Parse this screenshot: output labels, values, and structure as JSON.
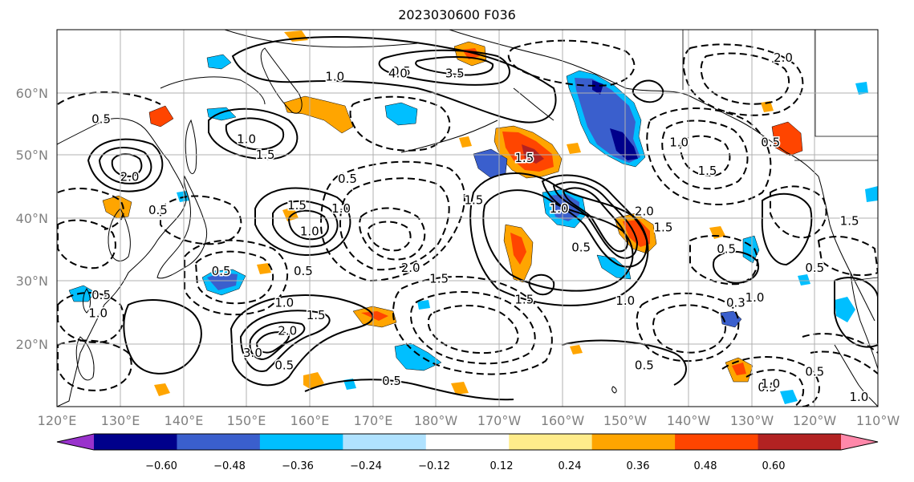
{
  "title": "2023030600 F036",
  "lat_labels": [
    "60°N",
    "50°N",
    "40°N",
    "30°N",
    "20°N"
  ],
  "lon_labels": [
    "120°E",
    "130°E",
    "140°E",
    "150°E",
    "160°E",
    "170°E",
    "180°W",
    "170°W",
    "160°W",
    "150°W",
    "140°W",
    "130°W",
    "120°W",
    "110°W"
  ],
  "colorbar": {
    "colors": [
      "#9932cc",
      "#00008b",
      "#3a5fcd",
      "#00bfff",
      "#b0e2ff",
      "#ffffff",
      "#ffec8b",
      "#ffa500",
      "#ff4500",
      "#b22222",
      "#ff88aa"
    ],
    "tick_labels": [
      "−0.60",
      "−0.48",
      "−0.36",
      "−0.24",
      "−0.12",
      "0.12",
      "0.24",
      "0.36",
      "0.48",
      "0.60"
    ]
  },
  "contour_labels": [
    {
      "text": "0.5",
      "lon": 174.5,
      "lat": 63.3
    },
    {
      "text": "1.0",
      "lon": 164,
      "lat": 62.5
    },
    {
      "text": "4.0",
      "lon": 174,
      "lat": 63.0
    },
    {
      "text": "3.5",
      "lon": 183,
      "lat": 63.0
    },
    {
      "text": "0.5",
      "lon": 127,
      "lat": 55.7
    },
    {
      "text": "1.0",
      "lon": 150,
      "lat": 52.5
    },
    {
      "text": "1.5",
      "lon": 153,
      "lat": 50.0
    },
    {
      "text": "2.0",
      "lon": 131.5,
      "lat": 46.5
    },
    {
      "text": "1.5",
      "lon": 158,
      "lat": 42.0
    },
    {
      "text": "1.0",
      "lon": 160,
      "lat": 37.8
    },
    {
      "text": "0.5",
      "lon": 136,
      "lat": 41.2
    },
    {
      "text": "1.5",
      "lon": 186,
      "lat": 42.8
    },
    {
      "text": "1.5",
      "lon": 194,
      "lat": 49.5
    },
    {
      "text": "1.0",
      "lon": 199.5,
      "lat": 41.5
    },
    {
      "text": "2.0",
      "lon": 213,
      "lat": 41.0
    },
    {
      "text": "1.5",
      "lon": 216,
      "lat": 38.5
    },
    {
      "text": "0.5",
      "lon": 203,
      "lat": 35.3
    },
    {
      "text": "1.5",
      "lon": 194,
      "lat": 27.0
    },
    {
      "text": "1.0",
      "lon": 210,
      "lat": 26.8
    },
    {
      "text": "2.0",
      "lon": 176,
      "lat": 32.0
    },
    {
      "text": "1.5",
      "lon": 180.5,
      "lat": 30.3
    },
    {
      "text": "0.5",
      "lon": 146,
      "lat": 31.5
    },
    {
      "text": "1.0",
      "lon": 126.5,
      "lat": 24.8
    },
    {
      "text": "0.5",
      "lon": 127,
      "lat": 27.7
    },
    {
      "text": "1.0",
      "lon": 156,
      "lat": 26.5
    },
    {
      "text": "1.5",
      "lon": 161,
      "lat": 24.5
    },
    {
      "text": "2.0",
      "lon": 156.5,
      "lat": 22.0
    },
    {
      "text": "3.0",
      "lon": 151,
      "lat": 18.5
    },
    {
      "text": "0.5",
      "lon": 156,
      "lat": 16.5
    },
    {
      "text": "0.5",
      "lon": 173,
      "lat": 14.0
    },
    {
      "text": "0.5",
      "lon": 213,
      "lat": 16.5
    },
    {
      "text": "0.5",
      "lon": 232.5,
      "lat": 13.0
    },
    {
      "text": "1.0",
      "lon": 233,
      "lat": 13.6
    },
    {
      "text": "0.5",
      "lon": 240,
      "lat": 15.5
    },
    {
      "text": "1.0",
      "lon": 247,
      "lat": 11.5
    },
    {
      "text": "1.0",
      "lon": 218.5,
      "lat": 52.0
    },
    {
      "text": "1.5",
      "lon": 223,
      "lat": 47.5
    },
    {
      "text": "0.5",
      "lon": 233,
      "lat": 52.0
    },
    {
      "text": "2.0",
      "lon": 235,
      "lat": 65.5
    },
    {
      "text": "0.5",
      "lon": 240,
      "lat": 32.0
    },
    {
      "text": "0.5",
      "lon": 226,
      "lat": 35.0
    },
    {
      "text": "0.3",
      "lon": 227.5,
      "lat": 26.5
    },
    {
      "text": "1.0",
      "lon": 230.5,
      "lat": 27.3
    },
    {
      "text": "1.5",
      "lon": 245.5,
      "lat": 39.5
    },
    {
      "text": "0.5",
      "lon": 166,
      "lat": 46.2
    },
    {
      "text": "0.5",
      "lon": 159,
      "lat": 31.5
    },
    {
      "text": "1.0",
      "lon": 165,
      "lat": 41.5
    }
  ]
}
